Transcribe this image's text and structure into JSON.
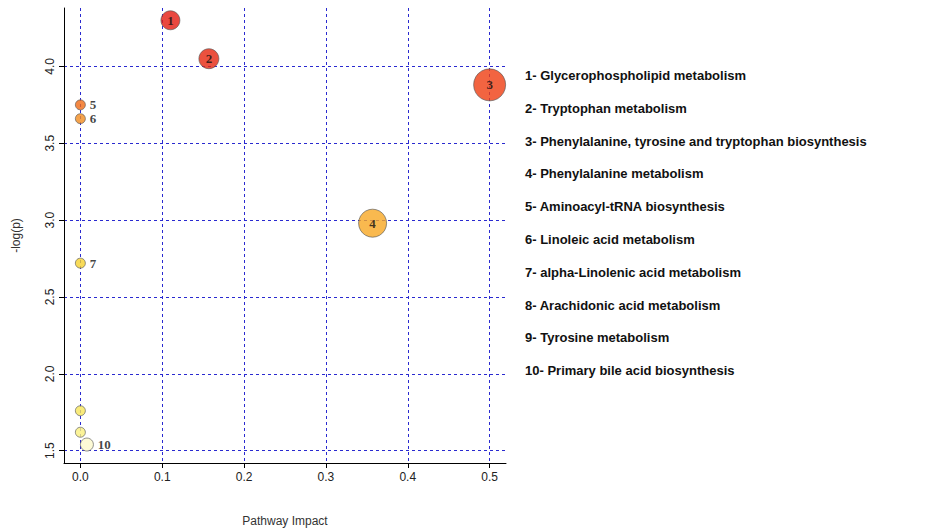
{
  "chart_data": {
    "type": "scatter",
    "x_label": "Pathway Impact",
    "y_label": "-log(p)",
    "x": [
      0.11,
      0.157,
      0.5,
      0.357,
      0.0,
      0.0,
      0.0,
      0.0,
      0.0,
      0.008
    ],
    "values": [
      4.3,
      4.05,
      3.88,
      2.98,
      3.75,
      3.66,
      2.72,
      1.76,
      1.62,
      1.54
    ],
    "sizes": [
      19,
      20,
      32,
      28,
      10,
      10,
      10,
      10,
      10,
      13
    ],
    "colors": [
      "#e41a10",
      "#e6260e",
      "#ef3d12",
      "#f7a823",
      "#f06a14",
      "#f38c1f",
      "#f6d22f",
      "#f8e65a",
      "#faf07e",
      "#fdf9cc"
    ],
    "point_labels": [
      "1",
      "2",
      "3",
      "4",
      "5",
      "6",
      "7",
      null,
      null,
      "10"
    ],
    "annotations": [
      "1- Glycerophospholipid metabolism",
      "2- Tryptophan metabolism",
      "3- Phenylalanine, tyrosine and tryptophan biosynthesis",
      "4- Phenylalanine metabolism",
      "5- Aminoacyl-tRNA biosynthesis",
      "6- Linoleic acid metabolism",
      "7- alpha-Linolenic acid metabolism",
      "8- Arachidonic acid metabolism",
      "9- Tyrosine metabolism",
      "10- Primary bile acid biosynthesis"
    ],
    "xlim": [
      -0.02,
      0.52
    ],
    "ylim": [
      1.42,
      4.38
    ],
    "xticks": [
      {
        "value": 0,
        "label": "0.0"
      },
      0.1,
      0.2,
      0.3,
      0.4,
      0.5
    ],
    "yticks": [
      1.5,
      {
        "value": 2,
        "label": "2.0"
      },
      2.5,
      {
        "value": 3,
        "label": "3.0"
      },
      3.5,
      {
        "value": 4,
        "label": "4.0"
      }
    ],
    "grid": true
  }
}
